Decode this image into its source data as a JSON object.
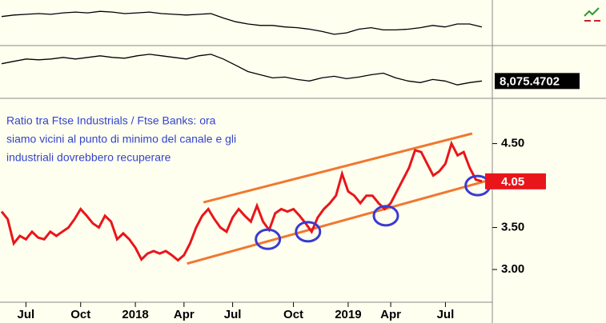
{
  "chart_data": [
    {
      "type": "line",
      "color": "#000000",
      "ylim": [
        0,
        55
      ],
      "values": [
        37,
        39,
        40,
        41,
        40,
        42,
        43,
        42,
        44,
        43,
        41,
        42,
        43,
        41,
        40,
        39,
        40,
        41,
        35,
        30,
        27,
        25,
        25,
        23,
        22,
        20,
        17,
        13,
        15,
        20,
        22,
        19,
        19,
        20,
        22,
        25,
        23,
        27,
        27,
        23
      ]
    },
    {
      "type": "line",
      "color": "#000000",
      "ylim": [
        0,
        62
      ],
      "last_label": "8,075.4702",
      "values": [
        42,
        45,
        48,
        47,
        48,
        50,
        48,
        50,
        52,
        50,
        49,
        52,
        54,
        52,
        50,
        48,
        52,
        54,
        48,
        40,
        32,
        28,
        24,
        25,
        22,
        20,
        24,
        26,
        23,
        25,
        28,
        30,
        24,
        20,
        18,
        22,
        20,
        15,
        18,
        20
      ]
    },
    {
      "type": "line",
      "color": "#e8161a",
      "annotation": [
        "Ratio tra Ftse Industrials / Ftse Banks: ora",
        "siamo vicini al punto di minimo del canale e gli",
        "industriali dovrebbero recuperare"
      ],
      "last_label": "4.05",
      "ylim": [
        2.61,
        5.02
      ],
      "yticks": [
        {
          "value": 3.0,
          "label": "3.00"
        },
        {
          "value": 3.5,
          "label": "3.50"
        },
        {
          "value": 4.5,
          "label": "4.50"
        }
      ],
      "categories": [
        null,
        null,
        null,
        null,
        "Jul",
        null,
        null,
        null,
        null,
        null,
        null,
        null,
        null,
        "Oct",
        null,
        null,
        null,
        null,
        null,
        null,
        null,
        null,
        "2018",
        null,
        null,
        null,
        null,
        null,
        null,
        null,
        "Apr",
        null,
        null,
        null,
        null,
        null,
        null,
        null,
        "Jul",
        null,
        null,
        null,
        null,
        null,
        null,
        null,
        null,
        null,
        "Oct",
        null,
        null,
        null,
        null,
        null,
        null,
        null,
        null,
        "2019",
        null,
        null,
        null,
        null,
        null,
        null,
        "Apr",
        null,
        null,
        null,
        null,
        null,
        null,
        null,
        null,
        "Jul",
        null,
        null,
        null,
        null,
        null,
        null
      ],
      "values": [
        3.69,
        3.6,
        3.31,
        3.4,
        3.36,
        3.45,
        3.38,
        3.36,
        3.45,
        3.4,
        3.45,
        3.5,
        3.6,
        3.72,
        3.64,
        3.55,
        3.5,
        3.64,
        3.57,
        3.36,
        3.43,
        3.36,
        3.26,
        3.12,
        3.19,
        3.22,
        3.19,
        3.22,
        3.17,
        3.11,
        3.17,
        3.31,
        3.5,
        3.64,
        3.72,
        3.6,
        3.5,
        3.45,
        3.62,
        3.72,
        3.64,
        3.57,
        3.76,
        3.57,
        3.47,
        3.67,
        3.72,
        3.69,
        3.72,
        3.64,
        3.55,
        3.45,
        3.62,
        3.72,
        3.79,
        3.88,
        4.14,
        3.93,
        3.88,
        3.79,
        3.88,
        3.88,
        3.79,
        3.72,
        3.79,
        3.93,
        4.07,
        4.21,
        4.42,
        4.4,
        4.26,
        4.12,
        4.17,
        4.26,
        4.5,
        4.36,
        4.4,
        4.21,
        4.07,
        4.05
      ],
      "trendlines": [
        {
          "color": "#f07830",
          "x": [
            33.2,
            77.4
          ],
          "values": [
            3.8,
            4.62
          ]
        },
        {
          "color": "#f07830",
          "x": [
            30.5,
            80.5
          ],
          "values": [
            3.07,
            4.07
          ]
        }
      ],
      "circles": [
        {
          "color": "#3a3ad0",
          "x": 43.8,
          "y": 3.36
        },
        {
          "color": "#3a3ad0",
          "x": 50.4,
          "y": 3.45
        },
        {
          "color": "#3a3ad0",
          "x": 63.2,
          "y": 3.64
        },
        {
          "color": "#3a3ad0",
          "x": 78.3,
          "y": 4.0
        }
      ]
    }
  ]
}
